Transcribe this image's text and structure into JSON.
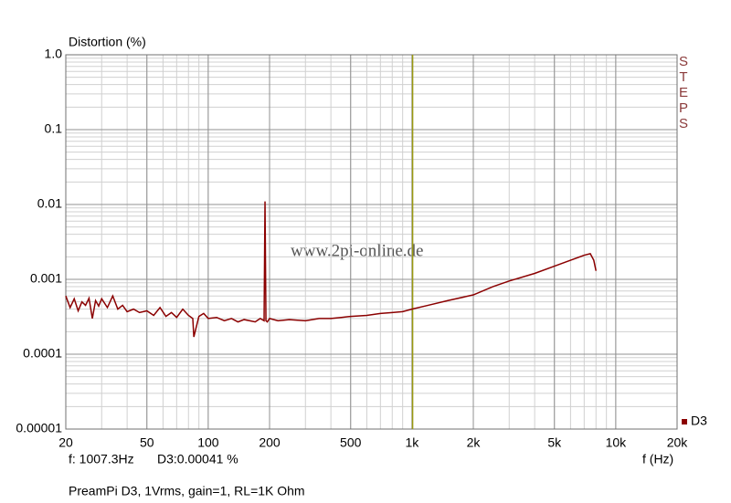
{
  "chart_data": {
    "type": "line",
    "ylabel": "Distortion (%)",
    "xlabel": "f (Hz)",
    "watermark": "www.2pi-online.de",
    "side_label": "STEPS",
    "cursor_readout": [
      "f: 1007.3Hz",
      "D3:0.00041 %"
    ],
    "cursor_x": 1007.3,
    "cursor_color": "#9a9a10",
    "footer": "PreamPi D3, 1Vrms, gain=1, RL=1K Ohm",
    "xscale": "log",
    "yscale": "log",
    "grid": true,
    "minor_grid": true,
    "legend": "bottom-right",
    "xlim": [
      20,
      20000
    ],
    "ylim": [
      1e-05,
      1
    ],
    "xticks": [
      20,
      50,
      100,
      200,
      500,
      {
        "value": 1000,
        "label": "1k"
      },
      {
        "value": 2000,
        "label": "2k"
      },
      {
        "value": 5000,
        "label": "5k"
      },
      {
        "value": 10000,
        "label": "10k"
      },
      {
        "value": 20000,
        "label": "20k"
      }
    ],
    "yticks": [
      {
        "value": 1,
        "label": "1.0"
      },
      0.1,
      0.01,
      0.001,
      0.0001,
      1e-05
    ],
    "x": [
      20,
      21,
      22,
      23,
      24,
      25,
      26,
      27,
      28,
      29,
      30,
      32,
      34,
      36,
      38,
      40,
      43,
      46,
      50,
      54,
      58,
      62,
      66,
      70,
      75,
      80,
      84,
      85,
      90,
      95,
      100,
      110,
      120,
      130,
      140,
      150,
      160,
      170,
      180,
      188,
      190,
      191,
      192,
      195,
      200,
      220,
      250,
      300,
      350,
      400,
      450,
      500,
      600,
      700,
      800,
      900,
      1000,
      1200,
      1500,
      2000,
      2500,
      3000,
      4000,
      5000,
      6000,
      7000,
      7500,
      7800,
      8000
    ],
    "series": [
      {
        "name": "D3",
        "color": "#8b0000",
        "values": [
          0.0006,
          0.00042,
          0.00055,
          0.00038,
          0.0005,
          0.00045,
          0.00056,
          0.0003,
          0.00052,
          0.00044,
          0.00055,
          0.00042,
          0.0006,
          0.0004,
          0.00045,
          0.00037,
          0.0004,
          0.00036,
          0.00038,
          0.00033,
          0.00042,
          0.00032,
          0.00036,
          0.00031,
          0.0004,
          0.00033,
          0.0003,
          0.00017,
          0.00032,
          0.00035,
          0.0003,
          0.00031,
          0.00028,
          0.0003,
          0.00027,
          0.00029,
          0.00028,
          0.00027,
          0.0003,
          0.00028,
          0.011,
          0.0017,
          0.00028,
          0.00027,
          0.0003,
          0.00028,
          0.00029,
          0.00028,
          0.0003,
          0.0003,
          0.00031,
          0.00032,
          0.00033,
          0.00035,
          0.00036,
          0.00037,
          0.0004,
          0.00045,
          0.00052,
          0.00062,
          0.0008,
          0.00095,
          0.0012,
          0.0015,
          0.0018,
          0.0021,
          0.0022,
          0.0018,
          0.0013
        ]
      }
    ]
  }
}
